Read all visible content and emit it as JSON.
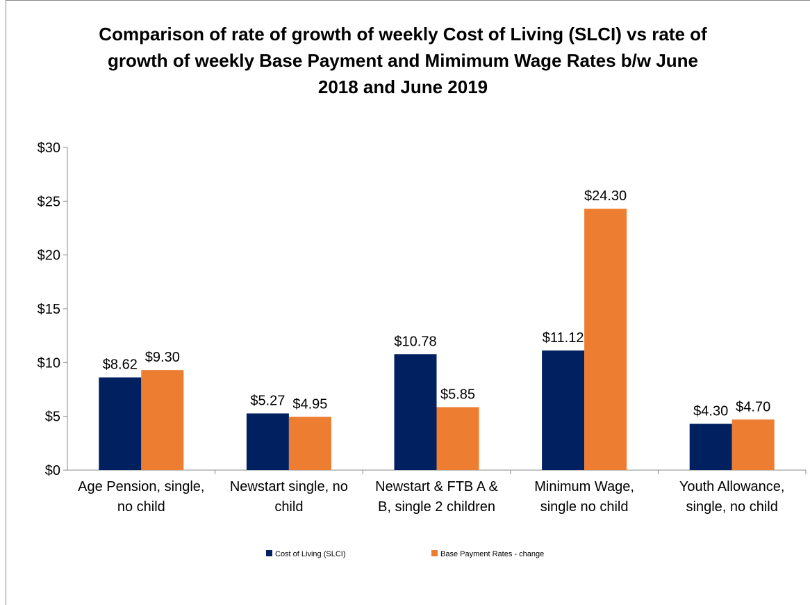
{
  "chart_data": {
    "type": "bar",
    "title": "Comparison of rate of growth of weekly Cost of Living (SLCI) vs rate of growth of weekly Base Payment and Mimimum Wage Rates b/w June 2018 and June 2019",
    "categories": [
      "Age Pension, single, no child",
      "Newstart single, no child",
      "Newstart & FTB A & B, single 2 children",
      "Minimum Wage, single no child",
      "Youth Allowance, single, no child"
    ],
    "series": [
      {
        "name": "Cost of Living (SLCI)",
        "color": "#002060",
        "values": [
          8.62,
          5.27,
          10.78,
          11.12,
          4.3
        ],
        "value_labels": [
          "$8.62",
          "$5.27",
          "$10.78",
          "$11.12",
          "$4.30"
        ]
      },
      {
        "name": "Base Payment Rates - change",
        "color": "#ed7d31",
        "values": [
          9.3,
          4.95,
          5.85,
          24.3,
          4.7
        ],
        "value_labels": [
          "$9.30",
          "$4.95",
          "$5.85",
          "$24.30",
          "$4.70"
        ]
      }
    ],
    "ylim": [
      0,
      30
    ],
    "yticks": [
      {
        "value": 0,
        "label": "$0"
      },
      {
        "value": 5,
        "label": "$5"
      },
      {
        "value": 10,
        "label": "$10"
      },
      {
        "value": 15,
        "label": "$15"
      },
      {
        "value": 20,
        "label": "$20"
      },
      {
        "value": 25,
        "label": "$25"
      },
      {
        "value": 30,
        "label": "$30"
      }
    ],
    "legend": "bottom"
  }
}
